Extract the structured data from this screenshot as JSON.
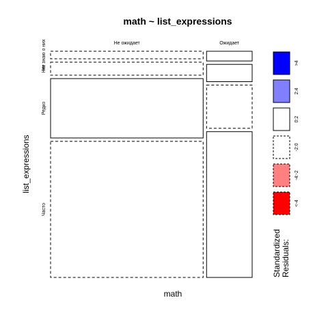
{
  "chart_data": {
    "type": "mosaic",
    "title": "math ~ list_expressions",
    "xlabel": "math",
    "ylabel": "list_expressions",
    "columns": [
      "Не ожидает",
      "Ожидает"
    ],
    "rows": [
      "Не знаю о них",
      "Нет",
      "Редко",
      "Часто"
    ],
    "column_proportions": [
      0.77,
      0.23
    ],
    "cells": [
      {
        "column": "Не ожидает",
        "row": "Не знаю о них",
        "proportion": 0.035,
        "residual_class": "-2:0"
      },
      {
        "column": "Не ожидает",
        "row": "Нет",
        "proportion": 0.06,
        "residual_class": "-2:0"
      },
      {
        "column": "Не ожидает",
        "row": "Редко",
        "proportion": 0.275,
        "residual_class": "0:2"
      },
      {
        "column": "Не ожидает",
        "row": "Часто",
        "proportion": 0.63,
        "residual_class": "-2:0"
      },
      {
        "column": "Ожидает",
        "row": "Не знаю о них",
        "proportion": 0.045,
        "residual_class": "0:2"
      },
      {
        "column": "Ожидает",
        "row": "Нет",
        "proportion": 0.08,
        "residual_class": "0:2"
      },
      {
        "column": "Ожидает",
        "row": "Редко",
        "proportion": 0.2,
        "residual_class": "-2:0"
      },
      {
        "column": "Ожидает",
        "row": "Часто",
        "proportion": 0.675,
        "residual_class": "0:2"
      }
    ],
    "legend": {
      "title_lines": [
        "Standardized",
        "Residuals:"
      ],
      "entries": [
        {
          "label": ">4",
          "fill": "#0000ff",
          "dashed": false
        },
        {
          "label": "2:4",
          "fill": "#8080ff",
          "dashed": false
        },
        {
          "label": "0:2",
          "fill": "#ffffff",
          "dashed": false
        },
        {
          "label": "-2:0",
          "fill": "#ffffff",
          "dashed": true
        },
        {
          "label": "-4:-2",
          "fill": "#ff8080",
          "dashed": true
        },
        {
          "label": "<-4",
          "fill": "#ff0000",
          "dashed": true
        }
      ]
    }
  }
}
